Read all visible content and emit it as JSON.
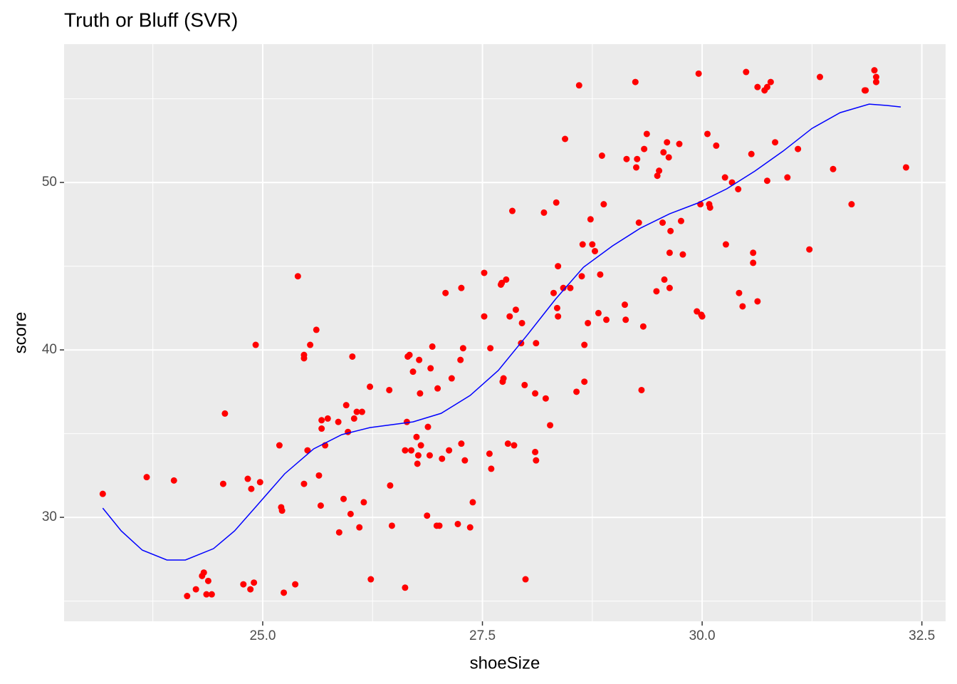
{
  "chart_data": {
    "type": "scatter",
    "title": "Truth or Bluff (SVR)",
    "x_label": "shoeSize",
    "y_label": "score",
    "xlim": [
      22.74,
      32.77
    ],
    "ylim": [
      23.79,
      58.26
    ],
    "xticks": [
      {
        "value": 25,
        "label": "25.0"
      },
      27.5,
      {
        "value": 30,
        "label": "30.0"
      },
      32.5
    ],
    "yticks": [
      30,
      40,
      50
    ],
    "grid": true,
    "series": [
      {
        "type": "scatter",
        "color": "#ff0000",
        "x": [
          23.18,
          23.68,
          23.99,
          24.14,
          24.24,
          24.31,
          24.33,
          24.36,
          24.38,
          24.42,
          24.55,
          24.57,
          24.78,
          24.83,
          24.86,
          24.87,
          24.9,
          24.92,
          24.97,
          25.19,
          25.21,
          25.22,
          25.24,
          25.37,
          25.4,
          25.47,
          25.47,
          25.47,
          25.51,
          25.54,
          25.61,
          25.64,
          25.66,
          25.67,
          25.67,
          25.71,
          25.74,
          25.86,
          25.87,
          25.92,
          25.95,
          25.97,
          26.0,
          26.02,
          26.04,
          26.07,
          26.1,
          26.13,
          26.15,
          26.22,
          26.23,
          26.44,
          26.45,
          26.47,
          26.62,
          26.62,
          26.64,
          26.65,
          26.67,
          26.69,
          26.71,
          26.75,
          26.76,
          26.77,
          26.78,
          26.79,
          26.8,
          26.87,
          26.88,
          26.9,
          26.91,
          26.93,
          26.98,
          26.99,
          27.01,
          27.04,
          27.08,
          27.12,
          27.15,
          27.22,
          27.25,
          27.26,
          27.26,
          27.28,
          27.3,
          27.36,
          27.39,
          27.52,
          27.52,
          27.58,
          27.59,
          27.6,
          27.71,
          27.72,
          27.73,
          27.74,
          27.77,
          27.79,
          27.81,
          27.84,
          27.86,
          27.88,
          27.94,
          27.95,
          27.98,
          27.99,
          28.1,
          28.1,
          28.11,
          28.11,
          28.2,
          28.22,
          28.27,
          28.31,
          28.34,
          28.35,
          28.36,
          28.36,
          28.42,
          28.44,
          28.5,
          28.57,
          28.6,
          28.63,
          28.64,
          28.66,
          28.66,
          28.7,
          28.73,
          28.75,
          28.78,
          28.82,
          28.84,
          28.86,
          28.88,
          28.91,
          29.12,
          29.13,
          29.14,
          29.24,
          29.25,
          29.26,
          29.28,
          29.31,
          29.33,
          29.34,
          29.37,
          29.48,
          29.49,
          29.51,
          29.55,
          29.56,
          29.57,
          29.6,
          29.62,
          29.63,
          29.63,
          29.64,
          29.74,
          29.76,
          29.78,
          29.94,
          29.96,
          29.98,
          29.99,
          30.0,
          30.06,
          30.08,
          30.09,
          30.16,
          30.26,
          30.27,
          30.34,
          30.41,
          30.42,
          30.46,
          30.5,
          30.56,
          30.58,
          30.58,
          30.63,
          30.63,
          30.71,
          30.74,
          30.74,
          30.78,
          30.83,
          30.97,
          31.09,
          31.22,
          31.34,
          31.49,
          31.7,
          31.85,
          31.86,
          31.96,
          31.98,
          31.98,
          32.32
        ],
        "y": [
          31.4,
          32.4,
          32.2,
          25.3,
          25.7,
          26.5,
          26.7,
          25.4,
          26.2,
          25.4,
          32.0,
          36.2,
          26.0,
          32.3,
          25.7,
          31.7,
          26.1,
          40.3,
          32.1,
          34.3,
          30.6,
          30.4,
          25.5,
          26.0,
          44.4,
          32.0,
          39.7,
          39.5,
          34.0,
          40.3,
          41.2,
          32.5,
          30.7,
          35.8,
          35.3,
          34.3,
          35.9,
          35.7,
          29.1,
          31.1,
          36.7,
          35.1,
          30.2,
          39.6,
          35.9,
          36.3,
          29.4,
          36.3,
          30.9,
          37.8,
          26.3,
          37.6,
          31.9,
          29.5,
          25.8,
          34.0,
          35.7,
          39.6,
          39.7,
          34.0,
          38.7,
          34.8,
          33.2,
          33.7,
          39.4,
          37.4,
          34.3,
          30.1,
          35.4,
          33.7,
          38.9,
          40.2,
          29.5,
          37.7,
          29.5,
          33.5,
          43.4,
          34.0,
          38.3,
          29.6,
          39.4,
          34.4,
          43.7,
          40.1,
          33.4,
          29.4,
          30.9,
          44.6,
          42.0,
          33.8,
          40.1,
          32.9,
          43.9,
          44.0,
          38.1,
          38.3,
          44.2,
          34.4,
          42.0,
          48.3,
          34.3,
          42.4,
          40.4,
          41.6,
          37.9,
          26.3,
          33.9,
          37.4,
          33.4,
          40.4,
          48.2,
          37.1,
          35.5,
          43.4,
          48.8,
          42.5,
          45.0,
          42.0,
          43.7,
          52.6,
          43.7,
          37.5,
          55.8,
          44.4,
          46.3,
          40.3,
          38.1,
          41.6,
          47.8,
          46.3,
          45.9,
          42.2,
          44.5,
          51.6,
          48.7,
          41.8,
          42.7,
          41.8,
          51.4,
          56.0,
          50.9,
          51.4,
          47.6,
          37.6,
          41.4,
          52.0,
          52.9,
          43.5,
          50.4,
          50.7,
          47.6,
          51.8,
          44.2,
          52.4,
          51.5,
          43.7,
          45.8,
          47.1,
          52.3,
          47.7,
          45.7,
          42.3,
          56.5,
          48.7,
          42.1,
          42.0,
          52.9,
          48.7,
          48.5,
          52.2,
          50.3,
          46.3,
          50.0,
          49.6,
          43.4,
          42.6,
          56.6,
          51.7,
          45.8,
          45.2,
          55.7,
          42.9,
          55.5,
          55.7,
          50.1,
          56.0,
          52.4,
          50.3,
          52.0,
          46.0,
          56.3,
          50.8,
          48.7,
          55.5,
          55.5,
          56.7,
          56.3,
          56.0,
          50.9
        ]
      },
      {
        "type": "line",
        "color": "#0000ff",
        "x": [
          23.18,
          23.39,
          23.63,
          23.91,
          24.12,
          24.44,
          24.68,
          24.93,
          25.25,
          25.58,
          25.9,
          26.22,
          26.71,
          27.03,
          27.36,
          27.68,
          28.01,
          28.33,
          28.65,
          28.98,
          29.3,
          29.63,
          29.95,
          30.28,
          30.6,
          30.92,
          31.25,
          31.57,
          31.9,
          32.1,
          32.26
        ],
        "y": [
          30.55,
          29.19,
          28.04,
          27.45,
          27.45,
          28.13,
          29.19,
          30.68,
          32.6,
          34.09,
          34.94,
          35.36,
          35.7,
          36.21,
          37.28,
          38.77,
          40.89,
          43.02,
          44.94,
          46.21,
          47.28,
          48.13,
          48.77,
          49.62,
          50.68,
          51.87,
          53.23,
          54.17,
          54.68,
          54.6,
          54.51
        ]
      }
    ]
  }
}
